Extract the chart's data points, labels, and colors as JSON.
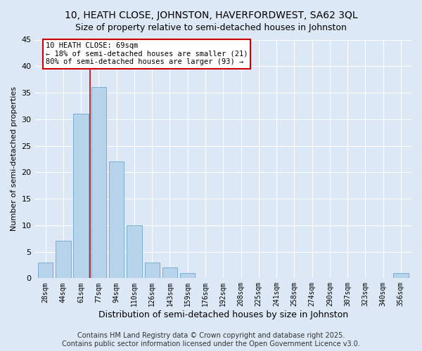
{
  "title": "10, HEATH CLOSE, JOHNSTON, HAVERFORDWEST, SA62 3QL",
  "subtitle": "Size of property relative to semi-detached houses in Johnston",
  "xlabel": "Distribution of semi-detached houses by size in Johnston",
  "ylabel": "Number of semi-detached properties",
  "categories": [
    "28sqm",
    "44sqm",
    "61sqm",
    "77sqm",
    "94sqm",
    "110sqm",
    "126sqm",
    "143sqm",
    "159sqm",
    "176sqm",
    "192sqm",
    "208sqm",
    "225sqm",
    "241sqm",
    "258sqm",
    "274sqm",
    "290sqm",
    "307sqm",
    "323sqm",
    "340sqm",
    "356sqm"
  ],
  "values": [
    3,
    7,
    31,
    36,
    22,
    10,
    3,
    2,
    1,
    0,
    0,
    0,
    0,
    0,
    0,
    0,
    0,
    0,
    0,
    0,
    1
  ],
  "bar_color": "#b8d4ea",
  "bar_edge_color": "#7aaed0",
  "vline_color": "#cc0000",
  "annotation_box_edge": "#cc0000",
  "ylim": [
    0,
    45
  ],
  "yticks": [
    0,
    5,
    10,
    15,
    20,
    25,
    30,
    35,
    40,
    45
  ],
  "footer1": "Contains HM Land Registry data © Crown copyright and database right 2025.",
  "footer2": "Contains public sector information licensed under the Open Government Licence v3.0.",
  "bg_color": "#dce8f5",
  "plot_bg_color": "#dce8f5",
  "title_fontsize": 10,
  "subtitle_fontsize": 9,
  "xlabel_fontsize": 9,
  "ylabel_fontsize": 8,
  "footer_fontsize": 7,
  "tick_fontsize": 7,
  "ytick_fontsize": 8
}
